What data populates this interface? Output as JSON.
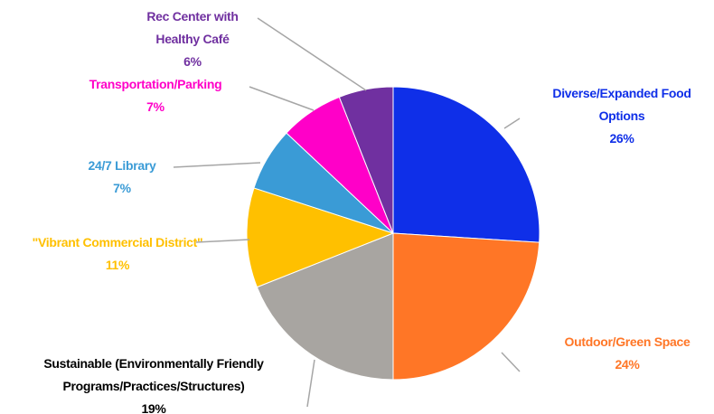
{
  "chart_data": {
    "type": "pie",
    "categories": [
      "Diverse/Expanded Food Options",
      "Outdoor/Green Space",
      "Sustainable (Environmentally Friendly Programs/Practices/Structures)",
      "\"Vibrant Commercial District\"",
      "24/7 Library",
      "Transportation/Parking",
      "Rec Center with Healthy Café"
    ],
    "values": [
      26,
      24,
      19,
      11,
      7,
      7,
      6
    ],
    "value_labels": [
      "26%",
      "24%",
      "19%",
      "11%",
      "7%",
      "7%",
      "6%"
    ],
    "colors": [
      "#0f2fe8",
      "#ff7626",
      "#a8a5a1",
      "#ffc000",
      "#3a9bd6",
      "#ff00c8",
      "#7030a0"
    ],
    "label_colors": [
      "#0f2fe8",
      "#ff7626",
      "#000000",
      "#ffc000",
      "#3a9bd6",
      "#ff00c8",
      "#7030a0"
    ]
  }
}
